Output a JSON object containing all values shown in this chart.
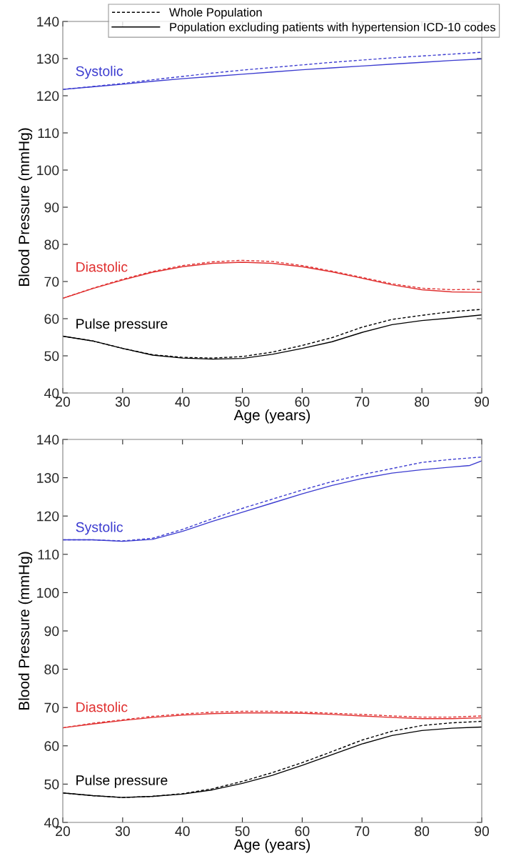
{
  "chart_data": [
    {
      "type": "line",
      "xlabel": "Age (years)",
      "ylabel": "Blood Pressure (mmHg)",
      "xlim": [
        20,
        90
      ],
      "ylim": [
        40,
        140
      ],
      "xticks": [
        20,
        30,
        40,
        50,
        60,
        70,
        80,
        90
      ],
      "yticks": [
        40,
        50,
        60,
        70,
        80,
        90,
        100,
        110,
        120,
        130,
        140
      ],
      "grid": false,
      "legend": "top",
      "marker": "none",
      "x": [
        20,
        25,
        30,
        35,
        40,
        45,
        50,
        55,
        60,
        65,
        70,
        75,
        80,
        85,
        90
      ],
      "annotations": [
        "Systolic",
        "Diastolic",
        "Pulse pressure"
      ],
      "series": [
        {
          "color": "#3c3cd0",
          "line_style": "dashed",
          "values": [
            121.7,
            122.5,
            123.3,
            124.3,
            125.2,
            126.1,
            126.9,
            127.6,
            128.3,
            129.0,
            129.6,
            130.2,
            130.7,
            131.2,
            131.7
          ]
        },
        {
          "color": "#3c3cd0",
          "line_style": "solid",
          "values": [
            121.7,
            122.4,
            123.1,
            123.9,
            124.6,
            125.2,
            125.8,
            126.4,
            127.0,
            127.5,
            128.0,
            128.5,
            129.0,
            129.5,
            129.9
          ]
        },
        {
          "color": "#e03030",
          "line_style": "dashed",
          "values": [
            65.5,
            68.2,
            70.6,
            72.7,
            74.3,
            75.3,
            75.7,
            75.4,
            74.3,
            72.8,
            71.1,
            69.4,
            68.2,
            67.8,
            67.9
          ]
        },
        {
          "color": "#e03030",
          "line_style": "solid",
          "values": [
            65.5,
            68.1,
            70.4,
            72.5,
            74.0,
            74.9,
            75.2,
            74.9,
            74.0,
            72.6,
            70.9,
            69.1,
            67.8,
            67.2,
            67.1
          ]
        },
        {
          "name": "Whole Population",
          "color": "#000000",
          "line_style": "dashed",
          "values": [
            55.3,
            54.0,
            52.0,
            50.3,
            49.6,
            49.4,
            49.8,
            51.0,
            52.8,
            54.9,
            57.7,
            59.8,
            60.9,
            61.9,
            62.5
          ]
        },
        {
          "name": "Population excluding patients with hypertension ICD-10 codes",
          "color": "#000000",
          "line_style": "solid",
          "values": [
            55.3,
            54.0,
            52.0,
            50.2,
            49.4,
            49.1,
            49.3,
            50.4,
            52.0,
            53.8,
            56.3,
            58.4,
            59.5,
            60.2,
            61.0
          ]
        }
      ]
    },
    {
      "type": "line",
      "xlabel": "Age (years)",
      "ylabel": "Blood Pressure (mmHg)",
      "xlim": [
        20,
        90
      ],
      "ylim": [
        40,
        140
      ],
      "xticks": [
        20,
        30,
        40,
        50,
        60,
        70,
        80,
        90
      ],
      "yticks": [
        40,
        50,
        60,
        70,
        80,
        90,
        100,
        110,
        120,
        130,
        140
      ],
      "grid": false,
      "legend": false,
      "marker": "none",
      "x": [
        20,
        25,
        30,
        35,
        40,
        45,
        50,
        55,
        60,
        65,
        70,
        75,
        80,
        85,
        90
      ],
      "annotations": [
        "Systolic",
        "Diastolic",
        "Pulse pressure"
      ],
      "series": [
        {
          "color": "#3c3cd0",
          "line_style": "dashed",
          "values": [
            113.8,
            113.8,
            113.5,
            114.2,
            116.5,
            119.3,
            122.0,
            124.4,
            126.8,
            129.0,
            130.8,
            132.4,
            134.0,
            134.8,
            135.4
          ]
        },
        {
          "color": "#3c3cd0",
          "line_style": "solid",
          "x": [
            20,
            25,
            30,
            35,
            40,
            45,
            50,
            55,
            60,
            65,
            70,
            75,
            80,
            85,
            88,
            90
          ],
          "values": [
            113.8,
            113.8,
            113.4,
            113.9,
            116.0,
            118.6,
            121.0,
            123.4,
            125.8,
            128.0,
            129.8,
            131.2,
            132.1,
            132.8,
            133.2,
            134.4
          ]
        },
        {
          "color": "#e03030",
          "line_style": "dashed",
          "values": [
            64.7,
            65.9,
            66.8,
            67.7,
            68.3,
            68.8,
            69.0,
            69.0,
            68.8,
            68.5,
            68.2,
            67.8,
            67.5,
            67.5,
            67.8
          ]
        },
        {
          "color": "#e03030",
          "line_style": "solid",
          "values": [
            64.7,
            65.7,
            66.6,
            67.4,
            68.0,
            68.4,
            68.6,
            68.6,
            68.5,
            68.2,
            67.8,
            67.4,
            67.1,
            67.1,
            67.3
          ]
        },
        {
          "color": "#000000",
          "line_style": "dashed",
          "values": [
            47.7,
            47.0,
            46.5,
            46.8,
            47.5,
            48.8,
            50.7,
            53.0,
            55.6,
            58.5,
            61.5,
            63.8,
            65.3,
            66.0,
            66.4
          ]
        },
        {
          "color": "#000000",
          "line_style": "solid",
          "values": [
            47.7,
            47.0,
            46.5,
            46.8,
            47.4,
            48.5,
            50.2,
            52.3,
            54.9,
            57.7,
            60.5,
            62.7,
            64.0,
            64.6,
            64.9
          ]
        }
      ]
    }
  ]
}
